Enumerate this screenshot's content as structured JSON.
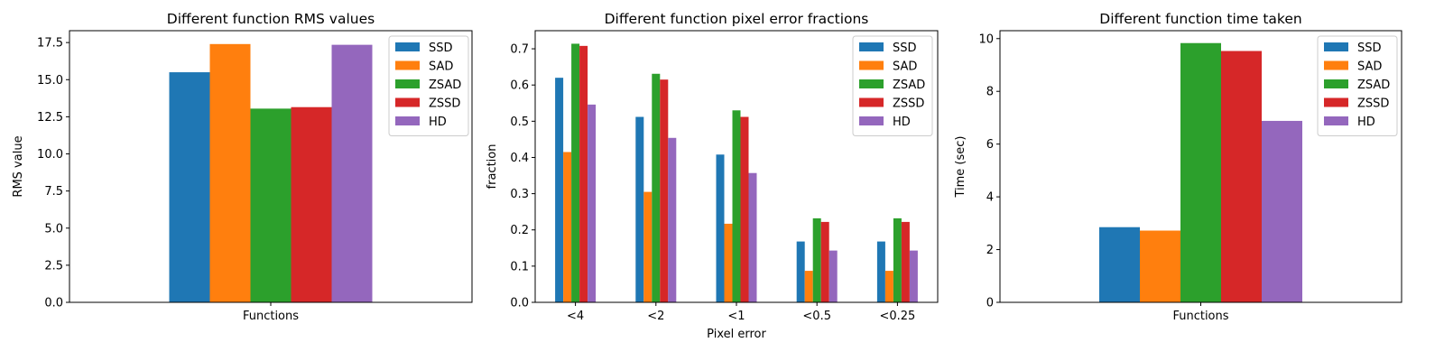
{
  "colors": {
    "SSD": "#1f77b4",
    "SAD": "#ff7f0e",
    "ZSAD": "#2ca02c",
    "ZSSD": "#d62728",
    "HD": "#9467bd"
  },
  "chart_data": [
    {
      "type": "bar",
      "title": "Different function RMS values",
      "xlabel": "",
      "ylabel": "RMS value",
      "categories": [
        "Functions"
      ],
      "series": [
        {
          "name": "SSD",
          "values": [
            15.5
          ]
        },
        {
          "name": "SAD",
          "values": [
            17.4
          ]
        },
        {
          "name": "ZSAD",
          "values": [
            13.05
          ]
        },
        {
          "name": "ZSSD",
          "values": [
            13.15
          ]
        },
        {
          "name": "HD",
          "values": [
            17.35
          ]
        }
      ],
      "ylim": [
        0,
        18.3
      ],
      "yticks": [
        "0.0",
        "2.5",
        "5.0",
        "7.5",
        "10.0",
        "12.5",
        "15.0",
        "17.5"
      ],
      "legend": "top-right",
      "grid": false
    },
    {
      "type": "bar",
      "title": "Different function pixel error fractions",
      "xlabel": "Pixel error",
      "ylabel": "fraction",
      "categories": [
        "<4",
        "<2",
        "<1",
        "<0.5",
        "<0.25"
      ],
      "series": [
        {
          "name": "SSD",
          "values": [
            0.62,
            0.512,
            0.408,
            0.168,
            0.168
          ]
        },
        {
          "name": "SAD",
          "values": [
            0.415,
            0.305,
            0.217,
            0.087,
            0.087
          ]
        },
        {
          "name": "ZSAD",
          "values": [
            0.714,
            0.631,
            0.53,
            0.232,
            0.232
          ]
        },
        {
          "name": "ZSSD",
          "values": [
            0.708,
            0.615,
            0.512,
            0.222,
            0.222
          ]
        },
        {
          "name": "HD",
          "values": [
            0.546,
            0.454,
            0.357,
            0.143,
            0.143
          ]
        }
      ],
      "ylim": [
        0,
        0.75
      ],
      "yticks": [
        "0.0",
        "0.1",
        "0.2",
        "0.3",
        "0.4",
        "0.5",
        "0.6",
        "0.7"
      ],
      "legend": "top-right",
      "grid": false
    },
    {
      "type": "bar",
      "title": "Different function time taken",
      "xlabel": "",
      "ylabel": "Time (sec)",
      "categories": [
        "Functions"
      ],
      "series": [
        {
          "name": "SSD",
          "values": [
            2.85
          ]
        },
        {
          "name": "SAD",
          "values": [
            2.72
          ]
        },
        {
          "name": "ZSAD",
          "values": [
            9.83
          ]
        },
        {
          "name": "ZSSD",
          "values": [
            9.53
          ]
        },
        {
          "name": "HD",
          "values": [
            6.88
          ]
        }
      ],
      "ylim": [
        0,
        10.3
      ],
      "yticks": [
        "0",
        "2",
        "4",
        "6",
        "8",
        "10"
      ],
      "legend": "top-right",
      "grid": false
    }
  ]
}
